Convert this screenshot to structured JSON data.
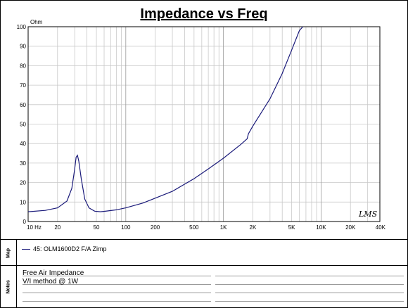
{
  "chart_data": {
    "type": "line",
    "title": "Impedance vs Freq",
    "ylabel": "Ohm",
    "xscale": "log",
    "xlim": [
      10,
      40000
    ],
    "ylim": [
      0,
      100
    ],
    "grid": true,
    "y_ticks": [
      "0",
      "10",
      "20",
      "30",
      "40",
      "50",
      "60",
      "70",
      "80",
      "90",
      "100"
    ],
    "x_ticks": [
      {
        "label": "10 Hz",
        "value": 10
      },
      {
        "label": "20",
        "value": 20
      },
      {
        "label": "50",
        "value": 50
      },
      {
        "label": "100",
        "value": 100
      },
      {
        "label": "200",
        "value": 200
      },
      {
        "label": "500",
        "value": 500
      },
      {
        "label": "1K",
        "value": 1000
      },
      {
        "label": "2K",
        "value": 2000
      },
      {
        "label": "5K",
        "value": 5000
      },
      {
        "label": "10K",
        "value": 10000
      },
      {
        "label": "20K",
        "value": 20000
      },
      {
        "label": "40K",
        "value": 40000
      }
    ],
    "series": [
      {
        "name": "45: OLM1600D2 F/A Zimp",
        "color": "#1a1a7a",
        "x": [
          10,
          15,
          20,
          25,
          28,
          30,
          31,
          32,
          33,
          35,
          38,
          42,
          48,
          55,
          65,
          80,
          100,
          150,
          200,
          300,
          500,
          700,
          1000,
          1500,
          1750,
          1800,
          2000,
          3000,
          4000,
          5000,
          6000,
          6500
        ],
        "y": [
          5,
          5.7,
          7,
          10.5,
          17,
          27,
          33,
          34,
          31,
          22,
          11.5,
          7,
          5.3,
          5,
          5.4,
          6,
          7,
          9.5,
          12,
          15.5,
          22,
          27,
          32.5,
          39.5,
          42.5,
          45,
          49,
          63,
          76,
          88,
          98,
          100
        ]
      }
    ]
  },
  "logo_text": "LMS",
  "map_panel": {
    "label": "Map"
  },
  "notes_panel": {
    "label": "Notes",
    "lines": [
      "Free Air Impedance",
      "V/I method @ 1W"
    ]
  }
}
